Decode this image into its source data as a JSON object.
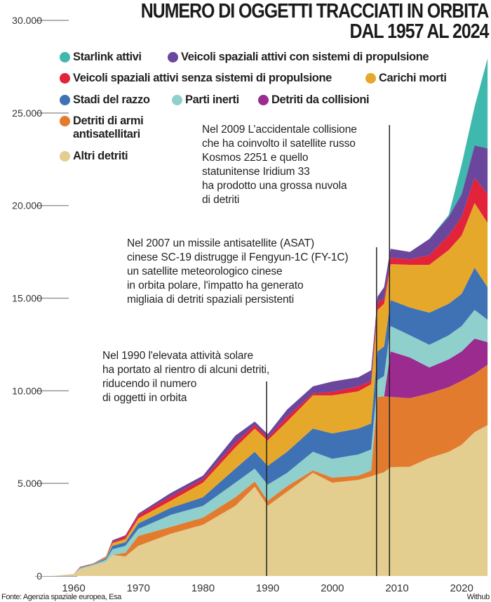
{
  "chart_data": {
    "type": "area",
    "stacked": true,
    "title": "NUMERO DI OGGETTI TRACCIATI IN ORBITA DAL 1957 AL 2024",
    "title_lines": [
      "NUMERO DI OGGETTI TRACCIATI IN ORBITA",
      "DAL 1957 AL 2024"
    ],
    "xlabel": "",
    "ylabel": "",
    "xlim": [
      1957,
      2024
    ],
    "ylim": [
      0,
      30000
    ],
    "grid": false,
    "legend_position": "top-left",
    "x_ticks": [
      1960,
      1970,
      1980,
      1990,
      2000,
      2010,
      2020
    ],
    "y_ticks": [
      0,
      5000,
      10000,
      15000,
      20000,
      25000,
      30000
    ],
    "y_tick_labels": [
      "0",
      "5.000",
      "10.000",
      "15.000",
      "20.000",
      "25.000",
      "30.000"
    ],
    "x": [
      1957,
      1960,
      1961,
      1963,
      1965,
      1966,
      1968,
      1970,
      1975,
      1980,
      1985,
      1988,
      1990,
      1993,
      1997,
      2000,
      2004,
      2006,
      2007,
      2008,
      2009,
      2012,
      2015,
      2018,
      2020,
      2022,
      2024
    ],
    "series": [
      {
        "key": "altri",
        "name": "Altri detriti",
        "color": "#e3cd8f",
        "values": [
          5,
          80,
          380,
          570,
          760,
          1140,
          1060,
          1630,
          2280,
          2770,
          3790,
          4820,
          3790,
          4550,
          5570,
          5040,
          5190,
          5380,
          5500,
          5600,
          5880,
          5900,
          6370,
          6700,
          7090,
          7770,
          8150
        ]
      },
      {
        "key": "asat",
        "name": "Detriti di armi antisatellitari",
        "color": "#e27b2e",
        "values": [
          0,
          0,
          0,
          0,
          0,
          0,
          190,
          530,
          370,
          380,
          460,
          280,
          270,
          300,
          130,
          270,
          230,
          310,
          4170,
          4100,
          3790,
          3700,
          3490,
          3500,
          3450,
          3150,
          3260
        ]
      },
      {
        "key": "collisioni",
        "name": "Detriti da collisioni",
        "color": "#9b2b8f",
        "values": [
          0,
          0,
          0,
          0,
          0,
          0,
          0,
          0,
          0,
          0,
          0,
          0,
          0,
          0,
          0,
          0,
          0,
          0,
          0,
          0,
          2460,
          2200,
          1400,
          1500,
          1590,
          1900,
          1220
        ]
      },
      {
        "key": "inerti",
        "name": "Parti inerti",
        "color": "#8fcfcc",
        "values": [
          0,
          5,
          40,
          40,
          120,
          300,
          380,
          380,
          650,
          640,
          790,
          700,
          870,
          720,
          1010,
          1020,
          1140,
          1140,
          910,
          1100,
          1370,
          1200,
          1220,
          1300,
          1370,
          1550,
          1210
        ]
      },
      {
        "key": "stadi",
        "name": "Stadi del razzo",
        "color": "#3f72b5",
        "values": [
          0,
          5,
          30,
          30,
          80,
          190,
          190,
          300,
          380,
          460,
          760,
          910,
          1020,
          1140,
          1250,
          1370,
          1400,
          1400,
          1550,
          1600,
          1400,
          1500,
          1740,
          1700,
          1740,
          2280,
          1750
        ]
      },
      {
        "key": "carichi",
        "name": "Carichi morti",
        "color": "#e6a82a",
        "values": [
          0,
          5,
          20,
          20,
          60,
          150,
          180,
          270,
          380,
          790,
          1140,
          1250,
          1370,
          1630,
          1790,
          2050,
          2010,
          2120,
          2240,
          2300,
          1940,
          2300,
          2580,
          2900,
          3150,
          3490,
          3480
        ]
      },
      {
        "key": "senza_prop",
        "name": "Veicoli spaziali attivi senza sistemi di propulsione",
        "color": "#e2233a",
        "values": [
          0,
          3,
          20,
          15,
          30,
          80,
          150,
          190,
          230,
          190,
          260,
          190,
          150,
          270,
          110,
          190,
          270,
          190,
          380,
          300,
          340,
          300,
          530,
          800,
          1010,
          1360,
          1560
        ]
      },
      {
        "key": "con_prop",
        "name": "Veicoli spaziali attivi con sistemi di propulsione",
        "color": "#6a479c",
        "values": [
          0,
          2,
          10,
          5,
          10,
          70,
          50,
          70,
          190,
          190,
          380,
          190,
          190,
          380,
          380,
          560,
          490,
          570,
          340,
          600,
          490,
          400,
          870,
          1000,
          1230,
          1750,
          2460
        ]
      },
      {
        "key": "starlink",
        "name": "Starlink attivi",
        "color": "#3fb8ae",
        "values": [
          0,
          0,
          0,
          0,
          0,
          0,
          0,
          0,
          0,
          0,
          0,
          0,
          0,
          0,
          0,
          0,
          0,
          0,
          0,
          0,
          0,
          0,
          0,
          100,
          1590,
          2080,
          4860
        ]
      }
    ],
    "annotations": [
      {
        "year": 2009,
        "lines": [
          "Nel 2009 L’accidentale collisione",
          "che ha coinvolto il satellite russo",
          "Kosmos 2251 e quello",
          "statunitense Iridium 33",
          "ha prodotto una grossa nuvola",
          "di detriti"
        ]
      },
      {
        "year": 2007,
        "lines": [
          "Nel 2007 un missile antisatellite (ASAT)",
          "cinese SC-19 distrugge il Fengyun-1C (FY-1C)",
          "un satellite meteorologico cinese",
          "in orbita polare, l'impatto ha generato",
          "migliaia di detriti spaziali persistenti"
        ]
      },
      {
        "year": 1990,
        "lines": [
          "Nel 1990 l'elevata attività solare",
          "ha portato al rientro di alcuni detriti,",
          "riducendo il numero",
          "di oggetti in orbita"
        ]
      }
    ]
  },
  "legend": [
    {
      "label": "Starlink attivi",
      "color": "#3fb8ae"
    },
    {
      "label": "Veicoli spaziali attivi con sistemi di propulsione",
      "color": "#6a479c"
    },
    {
      "label": "Veicoli spaziali attivi senza sistemi di propulsione",
      "color": "#e2233a"
    },
    {
      "label": "Carichi morti",
      "color": "#e6a82a"
    },
    {
      "label": "Stadi del razzo",
      "color": "#3f72b5"
    },
    {
      "label": "Parti inerti",
      "color": "#8fcfcc"
    },
    {
      "label": "Detriti da collisioni",
      "color": "#9b2b8f"
    },
    {
      "label": "Detriti di armi antisatellitari",
      "label_lines": [
        "Detriti di armi",
        "antisatellitari"
      ],
      "color": "#e27b2e"
    },
    {
      "label": "Altri detriti",
      "color": "#e3cd8f"
    }
  ],
  "footer": {
    "source": "Fonte: Agenzia spaziale europea, Esa",
    "brand": "Withub"
  }
}
